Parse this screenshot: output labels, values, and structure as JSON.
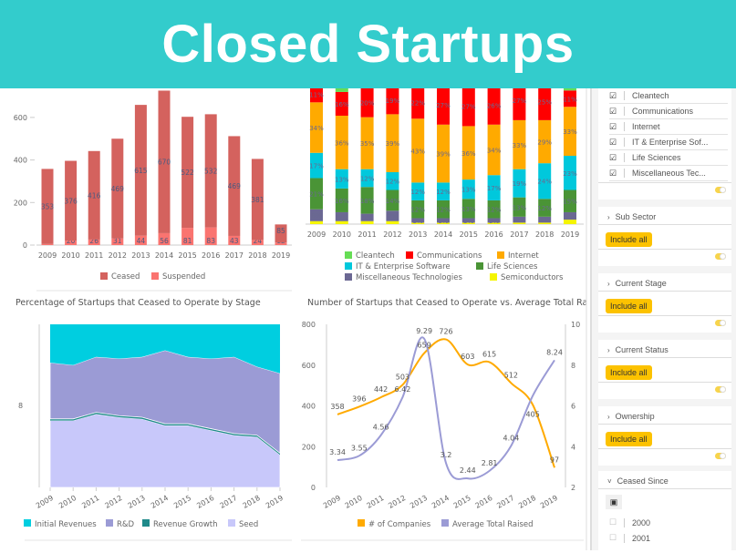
{
  "header": {
    "title": "Closed Startups"
  },
  "colors": {
    "header": "#33cccc",
    "accent": "#fcc200"
  },
  "chart_data": [
    {
      "type": "bar",
      "id": "ceased-by-year",
      "categories": [
        "2009",
        "2010",
        "2011",
        "2012",
        "2013",
        "2014",
        "2015",
        "2016",
        "2017",
        "2018",
        "2019"
      ],
      "series": [
        {
          "name": "Ceased",
          "color": "#d4625e",
          "values": [
            353,
            376,
            416,
            469,
            615,
            670,
            522,
            532,
            469,
            381,
            85
          ]
        },
        {
          "name": "Suspended",
          "color": "#fa7470",
          "values": [
            5,
            20,
            26,
            31,
            44,
            56,
            81,
            83,
            43,
            24,
            12
          ]
        }
      ],
      "stacked": true,
      "ylim": [
        0,
        726
      ],
      "yticks": [
        "0",
        "200",
        "400",
        "600"
      ],
      "legend": "bottom"
    },
    {
      "type": "bar",
      "id": "sector-share",
      "stacked": true,
      "percent": true,
      "categories": [
        "2009",
        "2010",
        "2011",
        "2012",
        "2013",
        "2014",
        "2015",
        "2016",
        "2017",
        "2018",
        "2019"
      ],
      "series": [
        {
          "name": "Semiconductors",
          "color": "#f5f500",
          "values": [
            2,
            2,
            2,
            2,
            1,
            1,
            1,
            1,
            1,
            1,
            3
          ]
        },
        {
          "name": "Miscellaneous Technologies",
          "color": "#6b6893",
          "values": [
            8,
            6,
            5,
            7,
            3,
            3,
            3,
            3,
            4,
            4,
            5
          ]
        },
        {
          "name": "Life Sciences",
          "color": "#4a9436",
          "values": [
            21,
            16,
            18,
            14,
            12,
            12,
            13,
            12,
            13,
            12,
            15
          ]
        },
        {
          "name": "IT & Enterprise Software",
          "color": "#00c8dc",
          "values": [
            17,
            13,
            12,
            12,
            12,
            12,
            13,
            17,
            19,
            24,
            23
          ]
        },
        {
          "name": "Internet",
          "color": "#ffaa00",
          "values": [
            34,
            36,
            35,
            39,
            43,
            39,
            36,
            34,
            33,
            29,
            33
          ]
        },
        {
          "name": "Communications",
          "color": "#ff0000",
          "values": [
            11,
            16,
            20,
            19,
            22,
            27,
            27,
            26,
            27,
            25,
            11
          ]
        },
        {
          "name": "Cleantech",
          "color": "#66dd55",
          "values": [
            7,
            11,
            8,
            7,
            7,
            6,
            7,
            7,
            3,
            5,
            10
          ]
        }
      ],
      "legend_order": [
        "Cleantech",
        "Communications",
        "Internet",
        "IT & Enterprise Software",
        "Life Sciences",
        "Miscellaneous Technologies",
        "Semiconductors"
      ],
      "legend": "bottom"
    },
    {
      "type": "area",
      "id": "stage-share",
      "title": "Percentage of Startups that Ceased to Operate by Stage",
      "percent": true,
      "ytick": "8",
      "categories": [
        "2009",
        "2010",
        "2011",
        "2012",
        "2013",
        "2014",
        "2015",
        "2016",
        "2017",
        "2018",
        "2019"
      ],
      "series": [
        {
          "name": "Seed",
          "color": "#c8c8fa",
          "values": [
            41,
            41,
            45,
            43,
            42,
            38,
            38,
            35,
            32,
            31,
            20
          ]
        },
        {
          "name": "Revenue Growth",
          "color": "#1f8a8a",
          "values": [
            1,
            1,
            1,
            1,
            1,
            1,
            1,
            1,
            1,
            1,
            1
          ]
        },
        {
          "name": "R&D",
          "color": "#9b9bd5",
          "values": [
            34.5,
            33,
            34,
            35,
            37,
            45,
            41,
            43,
            47,
            42,
            49
          ]
        },
        {
          "name": "Initial Revenues",
          "color": "#00cee0",
          "values": [
            23.5,
            25,
            20,
            21,
            20,
            16,
            20,
            21,
            20,
            26,
            30
          ]
        }
      ],
      "legend_order": [
        "Initial Revenues",
        "R&D",
        "Revenue Growth",
        "Seed"
      ],
      "legend": "bottom"
    },
    {
      "type": "line",
      "id": "ceased-vs-raised",
      "title": "Number of Startups that Ceased to Operate vs. Average Total Rai",
      "categories": [
        "2009",
        "2010",
        "2011",
        "2012",
        "2013",
        "2014",
        "2015",
        "2016",
        "2017",
        "2018",
        "2019"
      ],
      "series": [
        {
          "name": "# of Companies",
          "color": "#ffaa00",
          "axis": "left",
          "values": [
            358,
            396,
            442,
            503,
            659,
            726,
            603,
            615,
            512,
            405,
            97
          ],
          "labels": [
            "358",
            "396",
            "442",
            "503",
            "659",
            "726",
            "603",
            "615",
            "512",
            "405",
            "97"
          ]
        },
        {
          "name": "Average Total Raised",
          "color": "#9b9bd5",
          "axis": "right",
          "values": [
            3.34,
            3.55,
            4.56,
            6.42,
            9.29,
            3.2,
            2.44,
            2.81,
            4.04,
            6.5,
            8.24
          ],
          "labels": [
            "3.34",
            "3.55",
            "4.56",
            "6.42",
            "9.29",
            "3.2",
            "2.44",
            "2.81",
            "4.04",
            "",
            "8.24"
          ]
        }
      ],
      "ylim_left": [
        0,
        800
      ],
      "yticks_left": [
        "0",
        "200",
        "400",
        "600",
        "800"
      ],
      "ylim_right": [
        2,
        10
      ],
      "yticks_right": [
        "2",
        "4",
        "6",
        "8",
        "10"
      ],
      "legend": "bottom"
    }
  ],
  "panel": {
    "sectors": [
      "Cleantech",
      "Communications",
      "Internet",
      "IT & Enterprise Sof...",
      "Life Sciences",
      "Miscellaneous Tec..."
    ],
    "sections": [
      {
        "title": "Sub Sector",
        "button": "Include all"
      },
      {
        "title": "Current Stage",
        "button": "Include all"
      },
      {
        "title": "Current Status",
        "button": "Include all"
      },
      {
        "title": "Ownership",
        "button": "Include all"
      }
    ],
    "ceased_since": {
      "title": "Ceased Since",
      "years": [
        "2000",
        "2001"
      ]
    }
  }
}
